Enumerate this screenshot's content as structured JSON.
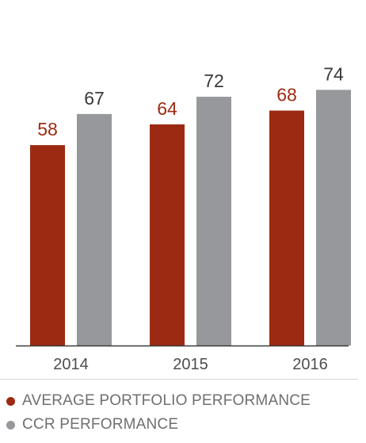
{
  "colors": {
    "portfolio": "#9c2a12",
    "ccr": "#97989c",
    "axis": "#3a3a3a",
    "axis_label": "#4d4d4d",
    "legend_text": "#6f6f6f"
  },
  "chart_data": {
    "type": "bar",
    "categories": [
      "2014",
      "2015",
      "2016"
    ],
    "series": [
      {
        "name": "AVERAGE PORTFOLIO PERFORMANCE",
        "values": [
          58,
          64,
          68
        ]
      },
      {
        "name": "CCR PERFORMANCE",
        "values": [
          67,
          72,
          74
        ]
      }
    ],
    "ylim": [
      0,
      100
    ],
    "grid": false,
    "legend": "bottom-left"
  },
  "legend": {
    "items": [
      {
        "label": "AVERAGE PORTFOLIO PERFORMANCE"
      },
      {
        "label": "CCR PERFORMANCE"
      }
    ]
  }
}
